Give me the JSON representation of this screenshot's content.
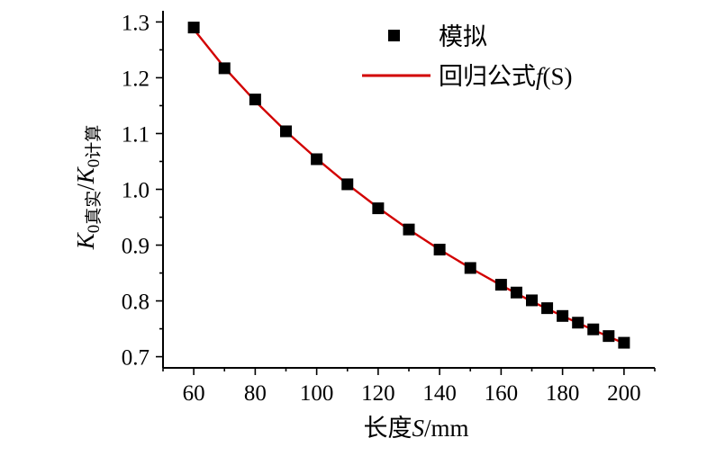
{
  "chart_data": {
    "type": "scatter",
    "title": "",
    "xlabel": {
      "prefix": "长度",
      "symbol": "S",
      "suffix": "/mm"
    },
    "ylabel": {
      "k1": "K",
      "sub1": "0真实",
      "slash": "/",
      "k2": "K",
      "sub2": "0计算"
    },
    "xlim": [
      50,
      210
    ],
    "ylim": [
      0.68,
      1.32
    ],
    "xticks": [
      60,
      80,
      100,
      120,
      140,
      160,
      180,
      200
    ],
    "xtick_labels": [
      "60",
      "80",
      "100",
      "120",
      "140",
      "160",
      "180",
      "200"
    ],
    "yticks": [
      0.7,
      0.8,
      0.9,
      1.0,
      1.1,
      1.2,
      1.3
    ],
    "ytick_labels": [
      "0.7",
      "0.8",
      "0.9",
      "1.0",
      "1.1",
      "1.2",
      "1.3"
    ],
    "legend_position": "top-right",
    "series": [
      {
        "name": "模拟",
        "kind": "scatter",
        "marker": "square",
        "color": "#000000",
        "x": [
          60,
          70,
          80,
          90,
          100,
          110,
          120,
          130,
          140,
          150,
          160,
          165,
          170,
          175,
          180,
          185,
          190,
          195,
          200
        ],
        "y": [
          1.29,
          1.217,
          1.161,
          1.104,
          1.054,
          1.009,
          0.966,
          0.928,
          0.892,
          0.859,
          0.829,
          0.815,
          0.801,
          0.787,
          0.773,
          0.761,
          0.749,
          0.737,
          0.725
        ]
      },
      {
        "name": "回归公式",
        "name_symbol": "f",
        "name_suffix": "(S)",
        "kind": "line",
        "color": "#d20000",
        "x": [
          60,
          70,
          80,
          90,
          100,
          110,
          120,
          130,
          140,
          150,
          160,
          170,
          180,
          190,
          200
        ],
        "y": [
          1.287,
          1.218,
          1.158,
          1.104,
          1.055,
          1.009,
          0.967,
          0.928,
          0.892,
          0.859,
          0.828,
          0.799,
          0.773,
          0.748,
          0.724
        ]
      }
    ]
  }
}
